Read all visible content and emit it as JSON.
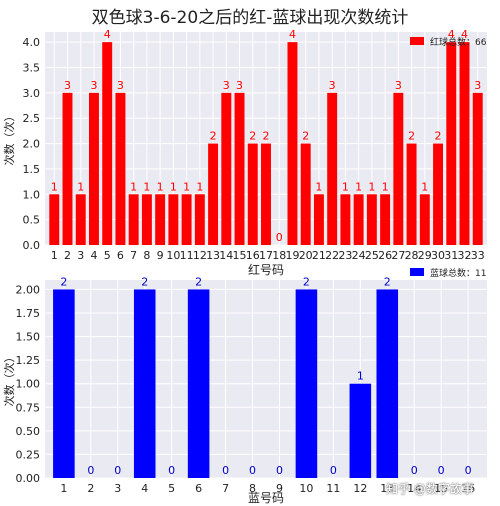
{
  "title": "双色球3-6-20之后的红-蓝球出现次数统计",
  "watermark": "知乎 @数字故事",
  "colors": {
    "red": "#ff0000",
    "blue": "#0000ff",
    "axes_bg": "#eaeaf2",
    "grid": "#ffffff",
    "red_label": "#ff0000",
    "blue_label": "#0000cc"
  },
  "chart_data": [
    {
      "type": "bar",
      "panel": "top",
      "xlabel": "红号码",
      "ylabel": "次数（次）",
      "legend": {
        "label": "红球总数：66",
        "placement": "top-right"
      },
      "ylim": [
        0,
        4.2
      ],
      "yticks": [
        "0.0",
        "0.5",
        "1.0",
        "1.5",
        "2.0",
        "2.5",
        "3.0",
        "3.5",
        "4.0"
      ],
      "categories": [
        "1",
        "2",
        "3",
        "4",
        "5",
        "6",
        "7",
        "8",
        "9",
        "10",
        "11",
        "12",
        "13",
        "14",
        "15",
        "16",
        "17",
        "18",
        "19",
        "20",
        "21",
        "22",
        "23",
        "24",
        "25",
        "26",
        "27",
        "28",
        "29",
        "30",
        "31",
        "32",
        "33"
      ],
      "values": [
        1,
        3,
        1,
        3,
        4,
        3,
        1,
        1,
        1,
        1,
        1,
        1,
        2,
        3,
        3,
        2,
        2,
        0,
        4,
        2,
        1,
        3,
        1,
        1,
        1,
        1,
        3,
        2,
        1,
        2,
        4,
        4,
        3
      ],
      "grid": true
    },
    {
      "type": "bar",
      "panel": "bottom",
      "xlabel": "蓝号码",
      "ylabel": "次数（次）",
      "legend": {
        "label": "蓝球总数：11",
        "placement": "top-right"
      },
      "ylim": [
        0,
        2.1
      ],
      "yticks": [
        "0.00",
        "0.25",
        "0.50",
        "0.75",
        "1.00",
        "1.25",
        "1.50",
        "1.75",
        "2.00"
      ],
      "categories": [
        "1",
        "2",
        "3",
        "4",
        "5",
        "6",
        "7",
        "8",
        "9",
        "10",
        "11",
        "12",
        "13",
        "14",
        "15",
        "16"
      ],
      "values": [
        2,
        0,
        0,
        2,
        0,
        2,
        0,
        0,
        0,
        2,
        0,
        1,
        2,
        0,
        0,
        0
      ],
      "grid": true
    }
  ]
}
